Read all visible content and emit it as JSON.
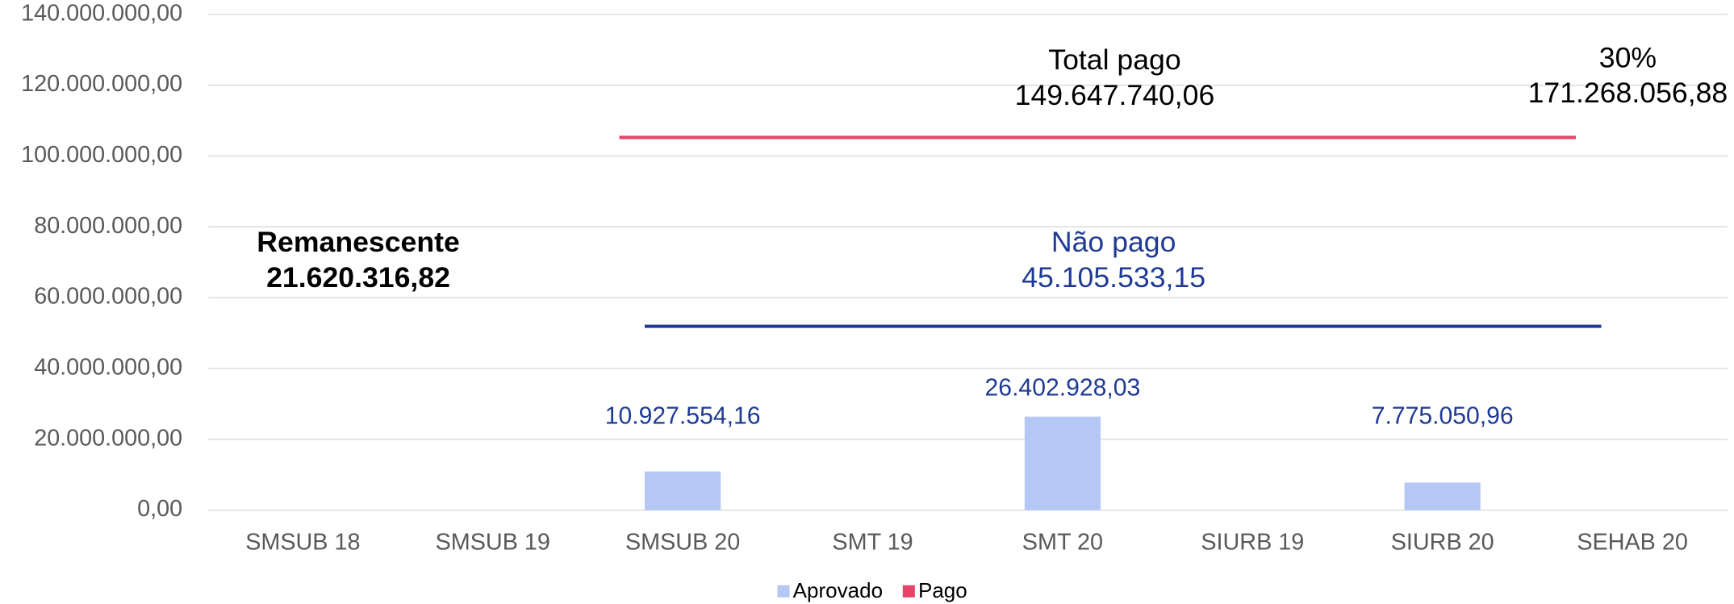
{
  "chart_data": {
    "type": "bar",
    "categories": [
      "SMSUB 18",
      "SMSUB 19",
      "SMSUB 20",
      "SMT 19",
      "SMT 20",
      "SIURB 19",
      "SIURB 20",
      "SEHAB 20"
    ],
    "series": [
      {
        "name": "Aprovado",
        "color": "#b4c7f5",
        "values": [
          null,
          null,
          10927554.16,
          null,
          26402928.03,
          null,
          7775050.96,
          null
        ],
        "value_labels": [
          null,
          null,
          "10.927.554,16",
          null,
          "26.402.928,03",
          null,
          "7.775.050,96",
          null
        ]
      },
      {
        "name": "Pago",
        "color": "#e8436a",
        "values": [
          null,
          null,
          null,
          null,
          null,
          null,
          null,
          null
        ]
      }
    ],
    "ylim": [
      0,
      140000000
    ],
    "yticks": [
      {
        "value": 0,
        "label": "0,00"
      },
      {
        "value": 20000000,
        "label": "20.000.000,00"
      },
      {
        "value": 40000000,
        "label": "40.000.000,00"
      },
      {
        "value": 60000000,
        "label": "60.000.000,00"
      },
      {
        "value": 80000000,
        "label": "80.000.000,00"
      },
      {
        "value": 100000000,
        "label": "100.000.000,00"
      },
      {
        "value": 120000000,
        "label": "120.000.000,00"
      },
      {
        "value": 140000000,
        "label": "140.000.000,00"
      }
    ],
    "grid": true,
    "legend": "bottom",
    "annotations": [
      {
        "lines": [
          "Total pago",
          "149.647.740,06"
        ],
        "color": "#000000"
      },
      {
        "lines": [
          "30%",
          "171.268.056,88"
        ],
        "color": "#000000"
      },
      {
        "lines": [
          "Remanescente",
          "21.620.316,82"
        ],
        "color": "#000000",
        "bold": true
      },
      {
        "lines": [
          "Não pago",
          "45.105.533,15"
        ],
        "color": "#1f3a93"
      }
    ]
  }
}
